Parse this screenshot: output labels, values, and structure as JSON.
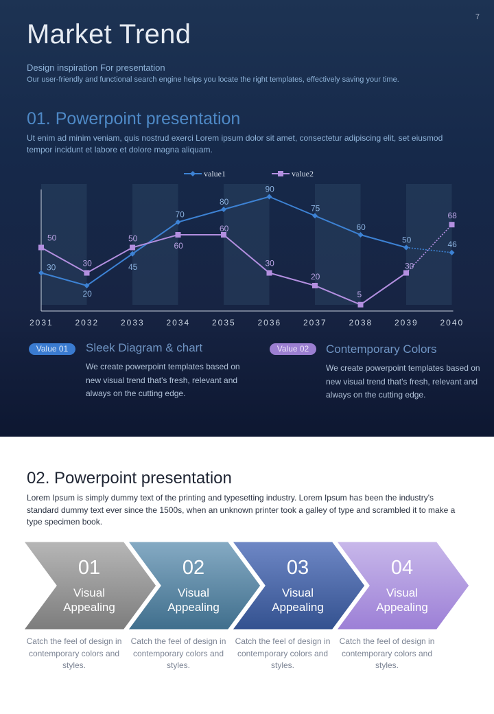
{
  "page_number": "7",
  "title": "Market Trend",
  "subtitle": "Design inspiration For presentation",
  "subtitle_detail": "Our user-friendly and functional search engine helps you locate the right templates, effectively saving your time.",
  "section1": {
    "heading": "01. Powerpoint presentation",
    "body": "Ut enim ad minim veniam, quis nostrud exerci  Lorem ipsum dolor sit amet, consectetur adipiscing elit, set eiusmod tempor incidunt et labore et dolore magna aliquam."
  },
  "chart_data": {
    "type": "line",
    "categories": [
      "2031",
      "2032",
      "2033",
      "2034",
      "2035",
      "2036",
      "2037",
      "2038",
      "2039",
      "2040"
    ],
    "series": [
      {
        "name": "value1",
        "values": [
          30,
          20,
          45,
          70,
          80,
          90,
          75,
          60,
          50,
          46
        ],
        "color": "#3d82d4"
      },
      {
        "name": "value2",
        "values": [
          50,
          30,
          50,
          60,
          60,
          30,
          20,
          5,
          30,
          68
        ],
        "color": "#b38fe0"
      }
    ],
    "ylim": [
      0,
      100
    ],
    "legend": "top",
    "grid": false,
    "note_style": "last segment of each series drawn dotted"
  },
  "features": [
    {
      "badge": "Value 01",
      "title": "Sleek Diagram & chart",
      "text": "We create powerpoint templates based on new visual trend that's fresh, relevant and always on the cutting edge.",
      "color": "#3a7bd0"
    },
    {
      "badge": "Value 02",
      "title": "Contemporary Colors",
      "text": "We create powerpoint templates based on new visual trend that's fresh, relevant and always on the cutting edge.",
      "color": "#9b7fd1"
    }
  ],
  "section2": {
    "heading": "02. Powerpoint presentation",
    "body": "Lorem Ipsum  is simply dummy text of the printing and typesetting industry. Lorem Ipsum  has been the industry's standard dummy text ever since the 1500s, when an unknown printer took a galley of type and scrambled it to make a type specimen book."
  },
  "steps": [
    {
      "number": "01",
      "line1": "Visual",
      "line2": "Appealing",
      "caption": "Catch the feel of design in contemporary colors and styles.",
      "colors": [
        "#b7b7b7",
        "#7c7c7c"
      ]
    },
    {
      "number": "02",
      "line1": "Visual",
      "line2": "Appealing",
      "caption": "Catch the feel of design in contemporary colors and styles.",
      "colors": [
        "#86abc4",
        "#3f6e8c"
      ]
    },
    {
      "number": "03",
      "line1": "Visual",
      "line2": "Appealing",
      "caption": "Catch the feel of design in contemporary colors and styles.",
      "colors": [
        "#6f88c6",
        "#33518f"
      ]
    },
    {
      "number": "04",
      "line1": "Visual",
      "line2": "Appealing",
      "caption": "Catch the feel of design in contemporary colors and styles.",
      "colors": [
        "#c8b8ea",
        "#9c7fd6"
      ]
    }
  ]
}
